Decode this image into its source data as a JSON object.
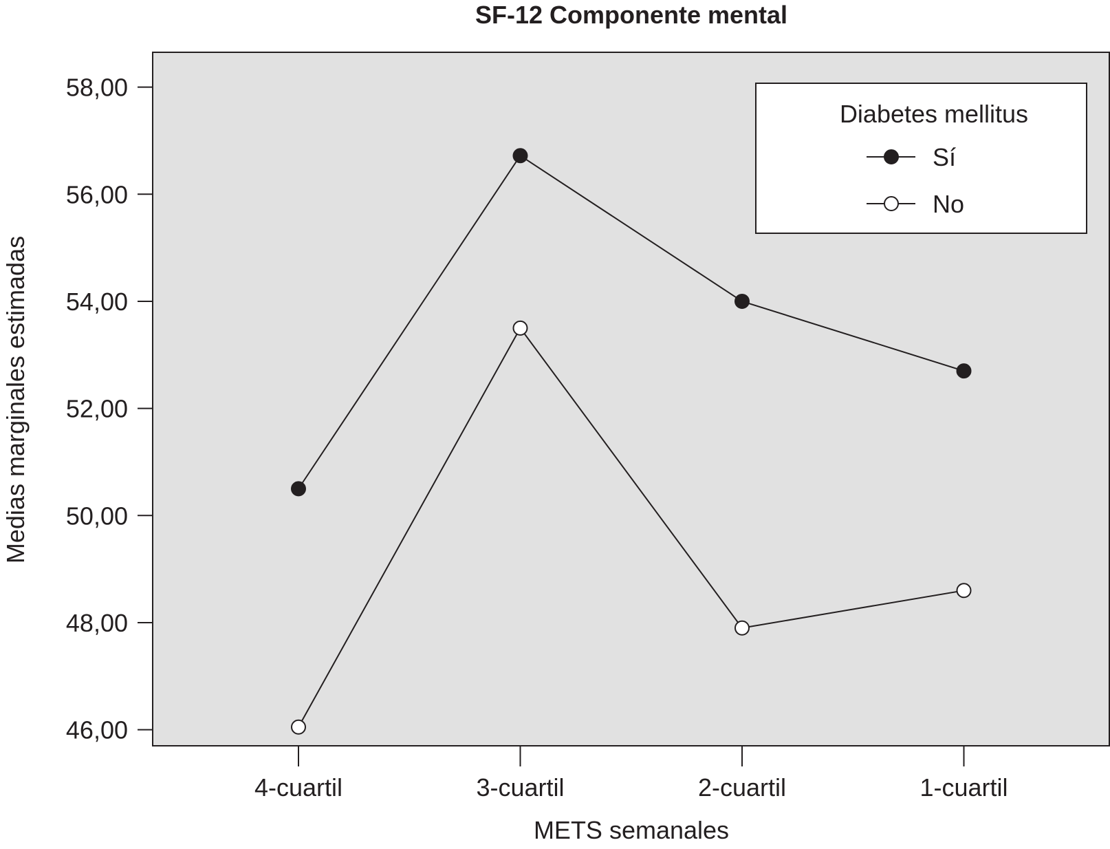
{
  "chart_data": {
    "type": "line",
    "title": "SF-12 Componente mental",
    "xlabel": "METS semanales",
    "ylabel": "Medias marginales estimadas",
    "categories": [
      "4-cuartil",
      "3-cuartil",
      "2-cuartil",
      "1-cuartil"
    ],
    "yticks": [
      "58,00",
      "56,00",
      "54,00",
      "52,00",
      "50,00",
      "48,00",
      "46,00"
    ],
    "ylim": [
      45.7,
      58.65
    ],
    "grid": false,
    "legend": {
      "title": "Diabetes mellitus",
      "placement": "top-right"
    },
    "series": [
      {
        "name": "Sí",
        "marker": "filled-circle",
        "values": [
          50.5,
          56.72,
          54.0,
          52.7
        ]
      },
      {
        "name": "No",
        "marker": "open-circle",
        "values": [
          46.05,
          53.5,
          47.9,
          48.6
        ]
      }
    ],
    "colors": {
      "plot_background": "#e1e1e1",
      "ink": "#231f20",
      "open_marker_fill": "#ffffff"
    }
  }
}
